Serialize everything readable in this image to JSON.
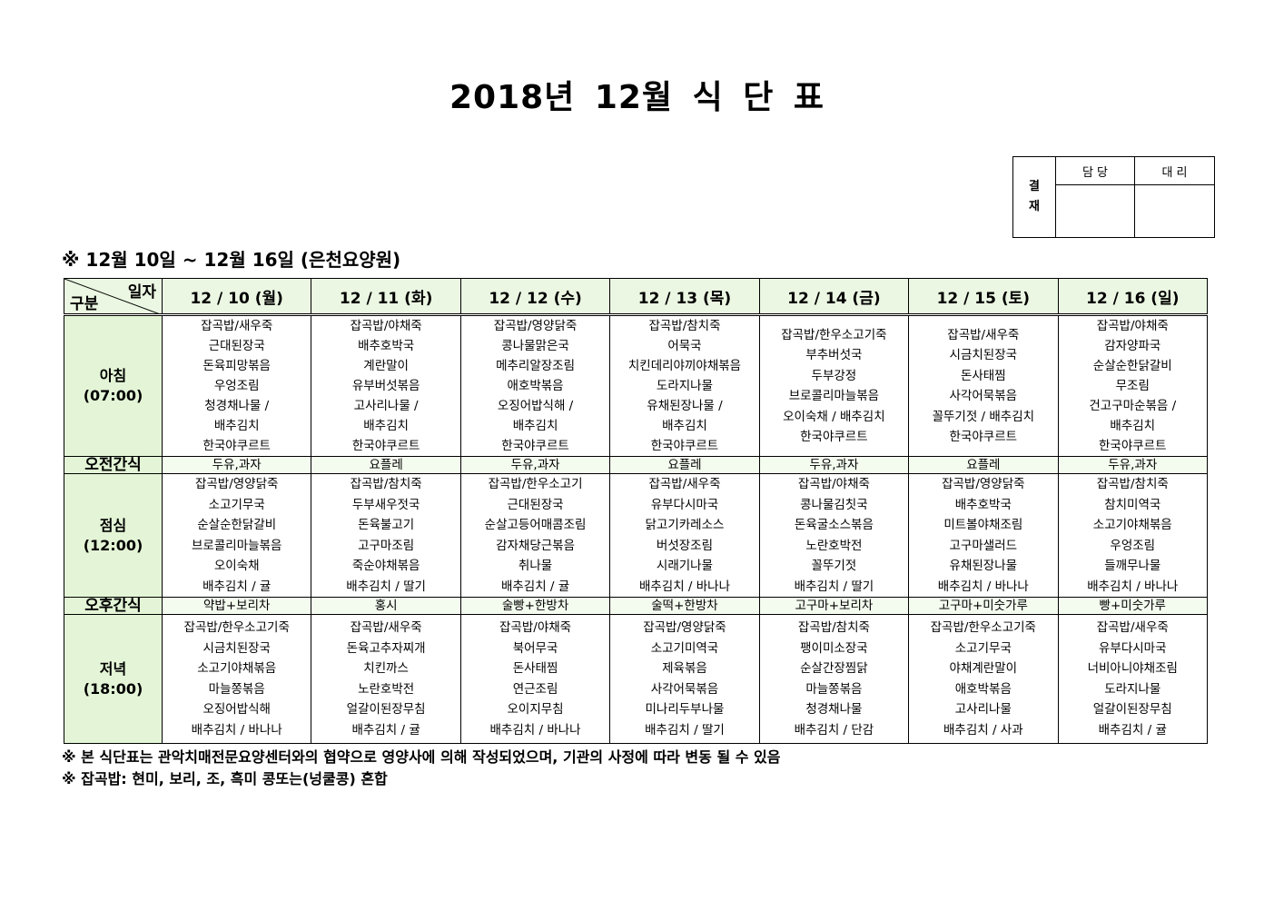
{
  "title": "2018년 12월 식 단 표",
  "approval": {
    "label": "결\n재",
    "label_lines": [
      "결",
      "재"
    ],
    "col1": "담 당",
    "col2": "대 리"
  },
  "subtitle": "※ 12월 10일 ~ 12월 16일 (은천요양원)",
  "table": {
    "corner_top": "일자",
    "corner_bottom": "구분",
    "days": [
      "12 / 10 (월)",
      "12 / 11 (화)",
      "12 / 12 (수)",
      "12 / 13 (목)",
      "12 / 14 (금)",
      "12 / 15 (토)",
      "12 / 16 (일)"
    ],
    "rows": [
      {
        "label": [
          "아침",
          "(07:00)"
        ],
        "type": "meal",
        "cells": [
          [
            "잡곡밥/새우죽",
            "근대된장국",
            "돈육피망볶음",
            "우엉조림",
            "청경채나물 /",
            "배추김치",
            "한국야쿠르트"
          ],
          [
            "잡곡밥/야채죽",
            "배추호박국",
            "계란말이",
            "유부버섯볶음",
            "고사리나물 /",
            "배추김치",
            "한국야쿠르트"
          ],
          [
            "잡곡밥/영양닭죽",
            "콩나물맑은국",
            "메추리알장조림",
            "애호박볶음",
            "오징어밥식해 /",
            "배추김치",
            "한국야쿠르트"
          ],
          [
            "잡곡밥/참치죽",
            "어묵국",
            "치킨데리야끼야채볶음",
            "도라지나물",
            "유채된장나물 /",
            "배추김치",
            "한국야쿠르트"
          ],
          [
            "잡곡밥/한우소고기죽",
            "부추버섯국",
            "두부강정",
            "브로콜리마늘볶음",
            "오이숙채 / 배추김치",
            "한국야쿠르트"
          ],
          [
            "잡곡밥/새우죽",
            "시금치된장국",
            "돈사태찜",
            "사각어묵볶음",
            "꼴뚜기젓 / 배추김치",
            "한국야쿠르트"
          ],
          [
            "잡곡밥/야채죽",
            "감자양파국",
            "순살순한닭갈비",
            "무조림",
            "건고구마순볶음 /",
            "배추김치",
            "한국야쿠르트"
          ]
        ]
      },
      {
        "label": [
          "오전간식"
        ],
        "type": "snack",
        "cells": [
          [
            "두유,과자"
          ],
          [
            "요플레"
          ],
          [
            "두유,과자"
          ],
          [
            "요플레"
          ],
          [
            "두유,과자"
          ],
          [
            "요플레"
          ],
          [
            "두유,과자"
          ]
        ]
      },
      {
        "label": [
          "점심",
          "(12:00)"
        ],
        "type": "meal",
        "cells": [
          [
            "잡곡밥/영양닭죽",
            "소고기무국",
            "순살순한닭갈비",
            "브로콜리마늘볶음",
            "오이숙채",
            "배추김치 / 귤"
          ],
          [
            "잡곡밥/참치죽",
            "두부새우젓국",
            "돈육불고기",
            "고구마조림",
            "죽순야채볶음",
            "배추김치 / 딸기"
          ],
          [
            "잡곡밥/한우소고기",
            "근대된장국",
            "순살고등어매콤조림",
            "감자채당근볶음",
            "취나물",
            "배추김치 / 귤"
          ],
          [
            "잡곡밥/새우죽",
            "유부다시마국",
            "닭고기카레소스",
            "버섯장조림",
            "시래기나물",
            "배추김치 / 바나나"
          ],
          [
            "잡곡밥/야채죽",
            "콩나물김칫국",
            "돈육굴소스볶음",
            "노란호박전",
            "꼴뚜기젓",
            "배추김치 / 딸기"
          ],
          [
            "잡곡밥/영양닭죽",
            "배추호박국",
            "미트볼야채조림",
            "고구마샐러드",
            "유채된장나물",
            "배추김치 / 바나나"
          ],
          [
            "잡곡밥/참치죽",
            "참치미역국",
            "소고기야채볶음",
            "우엉조림",
            "들깨무나물",
            "배추김치 / 바나나"
          ]
        ]
      },
      {
        "label": [
          "오후간식"
        ],
        "type": "snack",
        "cells": [
          [
            "약밥+보리차"
          ],
          [
            "홍시"
          ],
          [
            "술빵+한방차"
          ],
          [
            "술떡+한방차"
          ],
          [
            "고구마+보리차"
          ],
          [
            "고구마+미숫가루"
          ],
          [
            "빵+미숫가루"
          ]
        ]
      },
      {
        "label": [
          "저녁",
          "(18:00)"
        ],
        "type": "meal",
        "cells": [
          [
            "잡곡밥/한우소고기죽",
            "시금치된장국",
            "소고기야채볶음",
            "마늘쫑볶음",
            "오징어밥식해",
            "배추김치 / 바나나"
          ],
          [
            "잡곡밥/새우죽",
            "돈육고추자찌개",
            "치킨까스",
            "노란호박전",
            "얼갈이된장무침",
            "배추김치 / 귤"
          ],
          [
            "잡곡밥/야채죽",
            "북어무국",
            "돈사태찜",
            "연근조림",
            "오이지무침",
            "배추김치 / 바나나"
          ],
          [
            "잡곡밥/영양닭죽",
            "소고기미역국",
            "제육볶음",
            "사각어묵볶음",
            "미나리두부나물",
            "배추김치 / 딸기"
          ],
          [
            "잡곡밥/참치죽",
            "팽이미소장국",
            "순살간장찜닭",
            "마늘쫑볶음",
            "청경채나물",
            "배추김치 / 단감"
          ],
          [
            "잡곡밥/한우소고기죽",
            "소고기무국",
            "야채계란말이",
            "애호박볶음",
            "고사리나물",
            "배추김치 / 사과"
          ],
          [
            "잡곡밥/새우죽",
            "유부다시마국",
            "너비아니야채조림",
            "도라지나물",
            "얼갈이된장무침",
            "배추김치 / 귤"
          ]
        ]
      }
    ]
  },
  "notes": [
    "※ 본 식단표는 관악치매전문요양센터와의 협약으로 영양사에 의해 작성되었으며, 기관의 사정에 따라 변동 될 수 있음",
    "※ 잡곡밥: 현미, 보리, 조, 흑미 콩또는(넝쿨콩) 혼합"
  ],
  "colors": {
    "header_bg": "#ebf7e2",
    "label_bg": "#e3f5d6"
  }
}
